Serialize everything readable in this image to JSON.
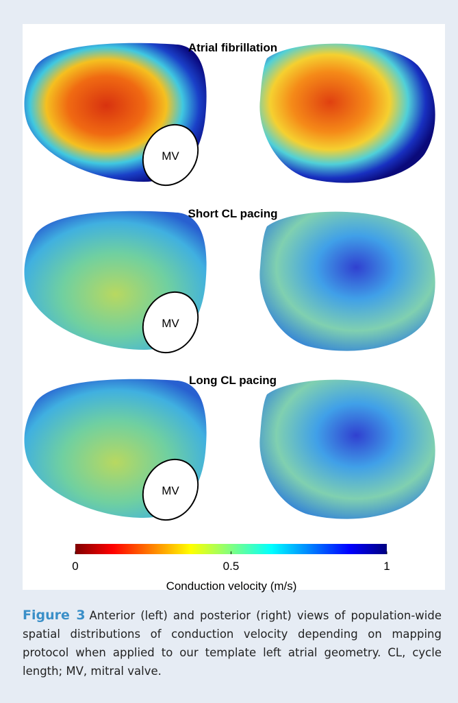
{
  "panels": [
    {
      "title": "Atrial fibrillation",
      "label": "MV"
    },
    {
      "title": "Short CL pacing",
      "label": "MV"
    },
    {
      "title": "Long CL pacing",
      "label": "MV"
    }
  ],
  "colorbar": {
    "label": "Conduction velocity (m/s)",
    "lim": [
      0,
      1
    ],
    "ticks": [
      0,
      0.5,
      1
    ]
  },
  "caption": {
    "label": "Figure 3",
    "text": "Anterior (left) and posterior (right) views of population-wide spatial distributions of conduction velocity depending on mapping protocol when applied to our template left atrial geometry. CL, cycle length; MV, mitral valve."
  }
}
